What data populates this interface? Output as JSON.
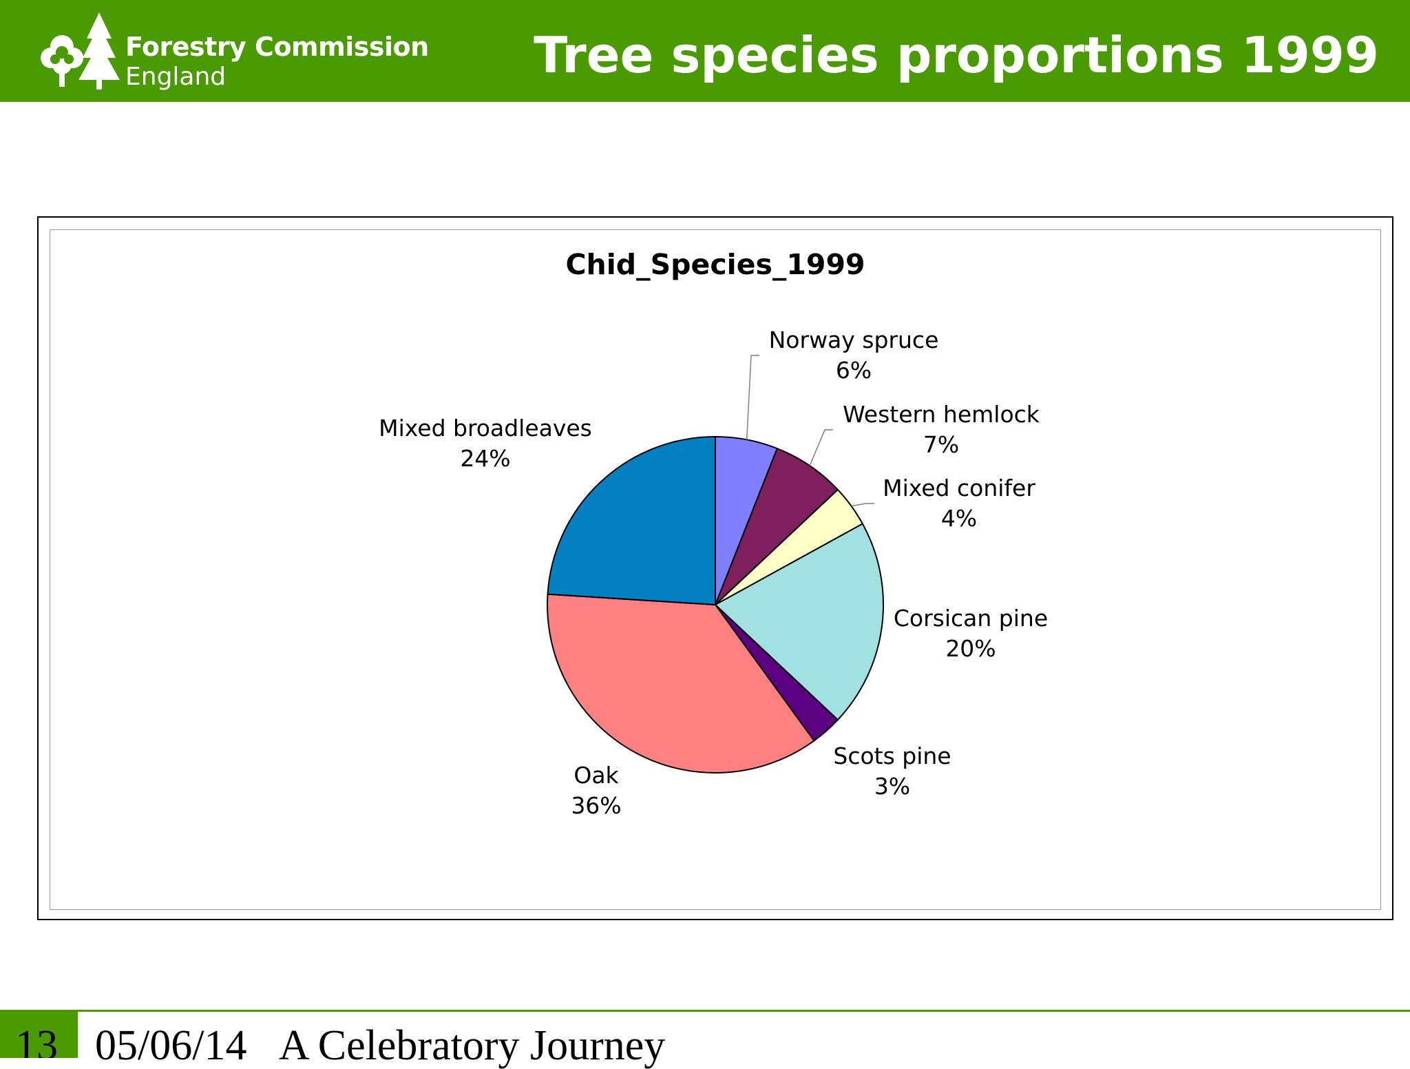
{
  "header": {
    "logo_line1": "Forestry Commission",
    "logo_line2": "England",
    "title": "Tree species proportions 1999"
  },
  "footer": {
    "slide_number": "13",
    "date": "05/06/14",
    "caption": "A Celebratory Journey"
  },
  "colors": {
    "header_green": "#4a9a02"
  },
  "chart_data": {
    "type": "pie",
    "title": "Chid_Species_1999",
    "slices": [
      {
        "label": "Norway spruce",
        "value": 6,
        "value_label": "6%",
        "color": "#8080ff"
      },
      {
        "label": "Western hemlock",
        "value": 7,
        "value_label": "7%",
        "color": "#801f5e"
      },
      {
        "label": "Mixed conifer",
        "value": 4,
        "value_label": "4%",
        "color": "#ffffc8"
      },
      {
        "label": "Corsican pine",
        "value": 20,
        "value_label": "20%",
        "color": "#a3e0e2"
      },
      {
        "label": "Scots pine",
        "value": 3,
        "value_label": "3%",
        "color": "#5a0080"
      },
      {
        "label": "Oak",
        "value": 36,
        "value_label": "36%",
        "color": "#ff8080"
      },
      {
        "label": "Mixed broadleaves",
        "value": 24,
        "value_label": "24%",
        "color": "#0280c2"
      }
    ]
  }
}
